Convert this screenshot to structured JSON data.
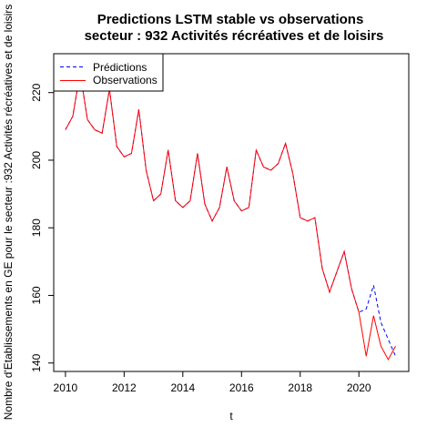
{
  "chart_data": {
    "type": "line",
    "title": "Predictions LSTM stable vs observations",
    "subtitle": "secteur : 932 Activités récréatives et de loisirs",
    "xlabel": "t",
    "ylabel": "Nombre d'Etablissements en GE pour le secteur :932 Activités récréatives et de loisirs",
    "xlim": [
      2009.6,
      2021.7
    ],
    "ylim": [
      137.5,
      231.5
    ],
    "xticks": [
      2010,
      2012,
      2014,
      2016,
      2018,
      2020
    ],
    "yticks": [
      140,
      160,
      180,
      200,
      220
    ],
    "legend_position": "top-left",
    "grid": false,
    "series": [
      {
        "name": "Prédictions",
        "color": "#0000ff",
        "linestyle": "dashed",
        "x": [
          2010,
          2010.25,
          2010.5,
          2010.75,
          2011,
          2011.25,
          2011.5,
          2011.75,
          2012,
          2012.25,
          2012.5,
          2012.75,
          2013,
          2013.25,
          2013.5,
          2013.75,
          2014,
          2014.25,
          2014.5,
          2014.75,
          2015,
          2015.25,
          2015.5,
          2015.75,
          2016,
          2016.25,
          2016.5,
          2016.75,
          2017,
          2017.25,
          2017.5,
          2017.75,
          2018,
          2018.25,
          2018.5,
          2018.75,
          2019,
          2019.25,
          2019.5,
          2019.75,
          2020,
          2020.25,
          2020.5,
          2020.75,
          2021,
          2021.25
        ],
        "values": [
          209,
          213,
          226,
          212,
          209,
          208,
          221,
          204,
          201,
          202,
          215,
          197,
          188,
          190,
          203,
          188,
          186,
          188,
          202,
          187,
          182,
          186,
          198,
          188,
          185,
          186,
          203,
          198,
          197,
          199,
          205,
          196,
          183,
          182,
          183,
          168,
          161,
          167,
          173,
          162,
          155,
          156,
          163,
          152,
          147,
          142
        ]
      },
      {
        "name": "Observations",
        "color": "#ff0000",
        "linestyle": "solid",
        "x": [
          2010,
          2010.25,
          2010.5,
          2010.75,
          2011,
          2011.25,
          2011.5,
          2011.75,
          2012,
          2012.25,
          2012.5,
          2012.75,
          2013,
          2013.25,
          2013.5,
          2013.75,
          2014,
          2014.25,
          2014.5,
          2014.75,
          2015,
          2015.25,
          2015.5,
          2015.75,
          2016,
          2016.25,
          2016.5,
          2016.75,
          2017,
          2017.25,
          2017.5,
          2017.75,
          2018,
          2018.25,
          2018.5,
          2018.75,
          2019,
          2019.25,
          2019.5,
          2019.75,
          2020,
          2020.25,
          2020.5,
          2020.75,
          2021,
          2021.25
        ],
        "values": [
          209,
          213,
          226,
          212,
          209,
          208,
          221,
          204,
          201,
          202,
          215,
          197,
          188,
          190,
          203,
          188,
          186,
          188,
          202,
          187,
          182,
          186,
          198,
          188,
          185,
          186,
          203,
          198,
          197,
          199,
          205,
          196,
          183,
          182,
          183,
          168,
          161,
          167,
          173,
          162,
          155,
          142,
          154,
          145,
          141,
          145
        ]
      }
    ]
  }
}
